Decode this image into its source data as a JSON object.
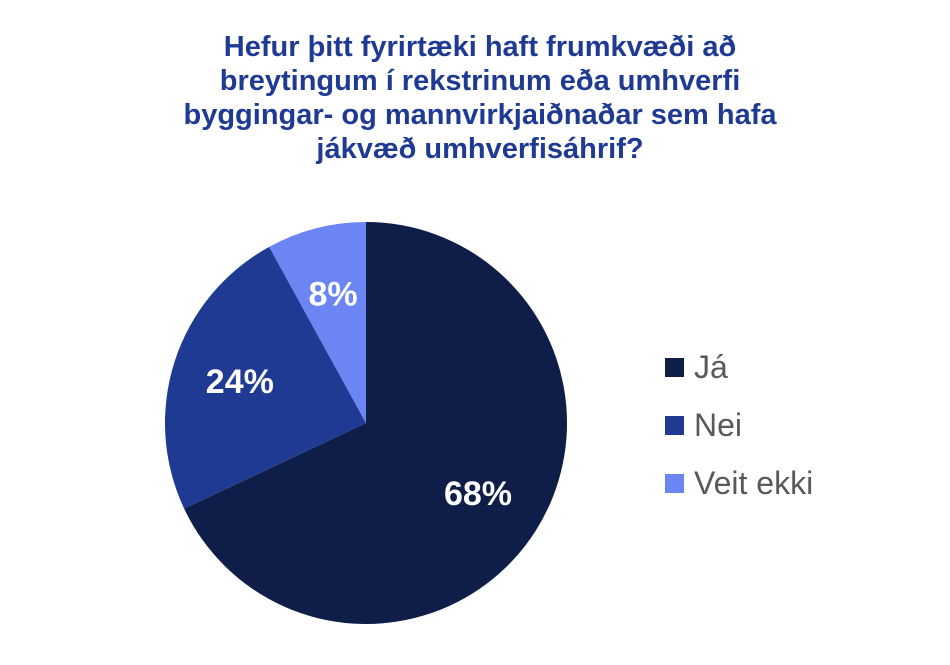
{
  "chart_data": {
    "type": "pie",
    "title_lines": [
      "Hefur þitt fyrirtæki haft frumkvæði að",
      "breytingum í rekstrinum eða umhverfi",
      "byggingar- og mannvirkjaiðnaðar sem hafa",
      "jákvæð umhverfisáhrif?"
    ],
    "slices": [
      {
        "label": "Já",
        "value": 68,
        "display": "68%",
        "color": "#0f1e48"
      },
      {
        "label": "Nei",
        "value": 24,
        "display": "24%",
        "color": "#1f3a93"
      },
      {
        "label": "Veit ekki",
        "value": 8,
        "display": "8%",
        "color": "#6b85f2"
      }
    ],
    "legend_position": "right"
  }
}
